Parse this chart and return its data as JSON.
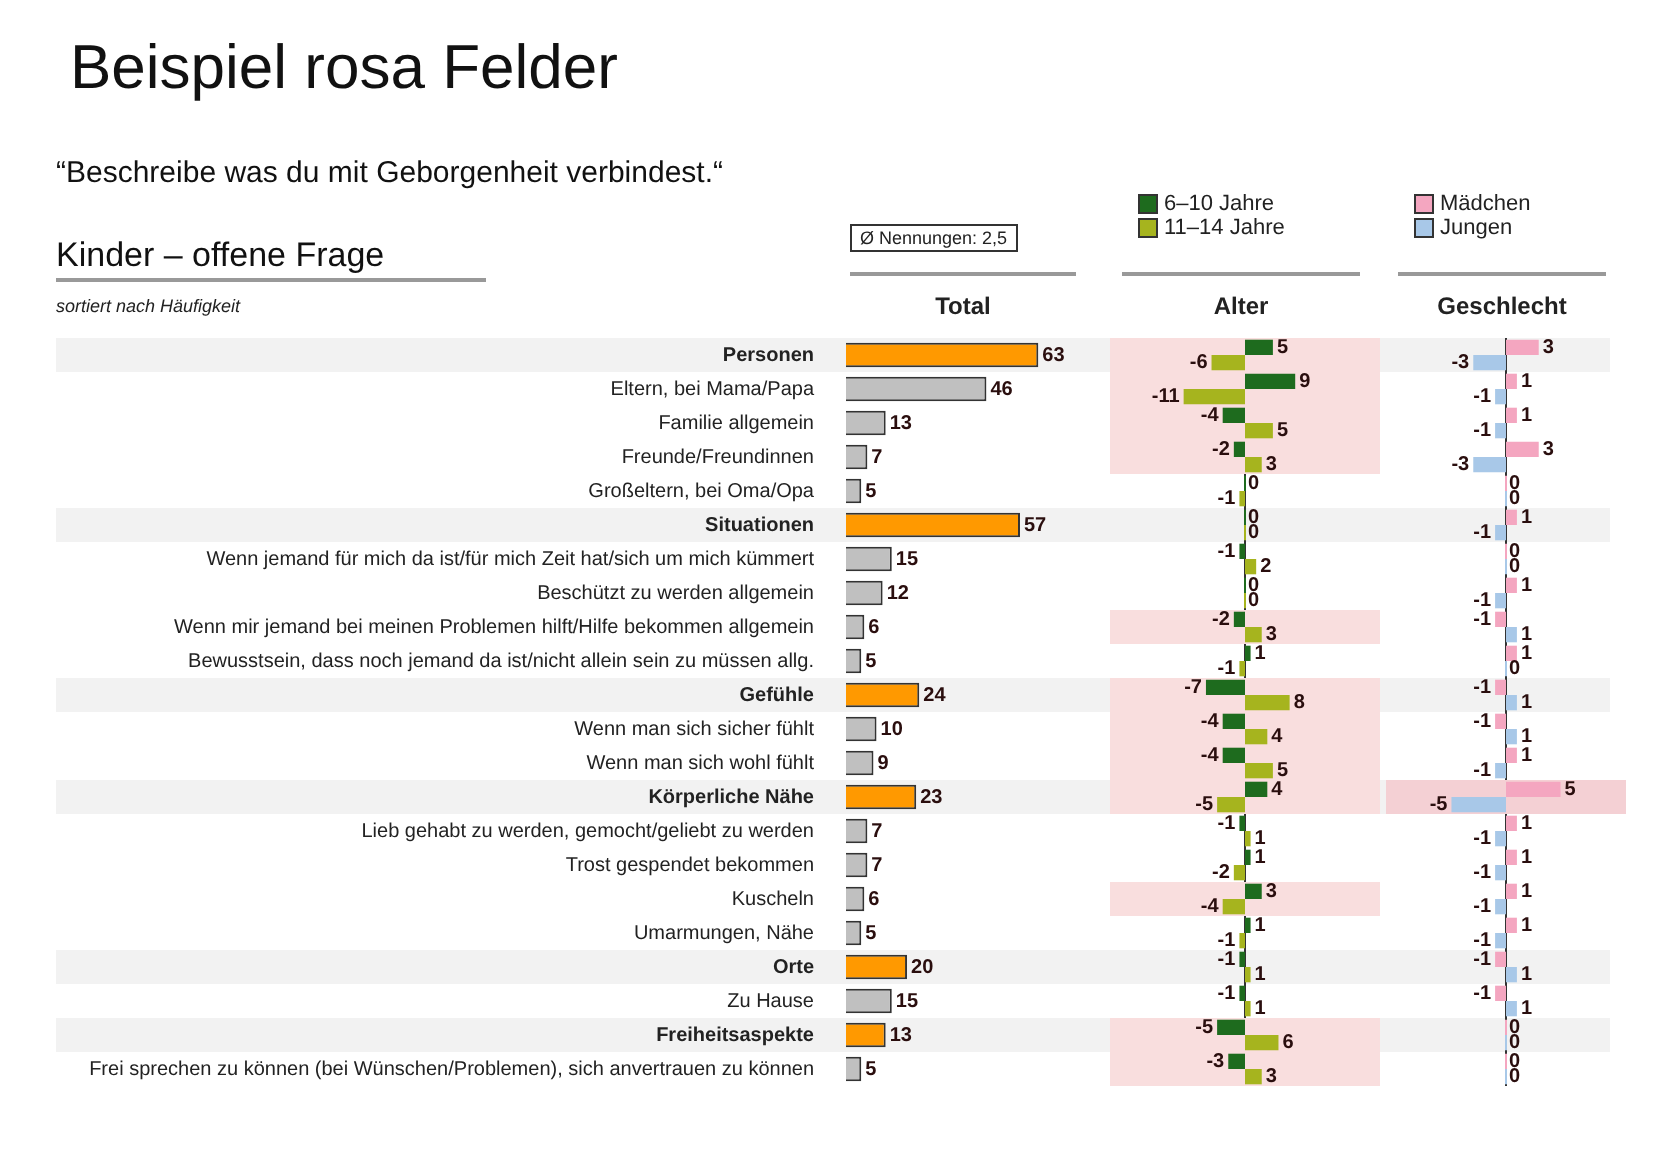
{
  "chart_data": [
    {
      "type": "bar",
      "orientation": "horizontal",
      "title": "Beispiel rosa Felder",
      "subtitle": "“Beschreibe was du mit Geborgenheit verbindest.“",
      "annotations": [
        "Kinder – offene Frage",
        "sortiert nach Häufigkeit",
        "Ø Nennungen: 2,5"
      ],
      "xlabel": "Total",
      "tick_labels": "y",
      "data_labels": true,
      "categories": [
        "Personen",
        "Eltern, bei Mama/Papa",
        "Familie allgemein",
        "Freunde/Freundinnen",
        "Großeltern, bei Oma/Opa",
        "Situationen",
        "Wenn jemand für mich da ist/für mich Zeit hat/sich um mich kümmert",
        "Beschützt zu werden allgemein",
        "Wenn mir jemand bei meinen Problemen hilft/Hilfe bekommen allgemein",
        "Bewusstsein, dass noch jemand da ist/nicht allein sein zu müssen allg.",
        "Gefühle",
        "Wenn man sich sicher fühlt",
        "Wenn man sich wohl fühlt",
        "Körperliche Nähe",
        "Lieb gehabt zu werden, gemocht/geliebt zu werden",
        "Trost gespendet bekommen",
        "Kuscheln",
        "Umarmungen, Nähe",
        "Orte",
        "Zu Hause",
        "Freiheitsaspekte",
        "Frei sprechen zu können (bei Wünschen/Problemen), sich anvertrauen zu können"
      ],
      "values": [
        63,
        46,
        13,
        7,
        5,
        57,
        15,
        12,
        6,
        5,
        24,
        10,
        9,
        23,
        7,
        7,
        6,
        5,
        20,
        15,
        13,
        5
      ],
      "colors": [
        "#ff9900",
        "#c0c0c0",
        "#c0c0c0",
        "#c0c0c0",
        "#c0c0c0",
        "#ff9900",
        "#c0c0c0",
        "#c0c0c0",
        "#c0c0c0",
        "#c0c0c0",
        "#ff9900",
        "#c0c0c0",
        "#c0c0c0",
        "#ff9900",
        "#c0c0c0",
        "#c0c0c0",
        "#c0c0c0",
        "#c0c0c0",
        "#ff9900",
        "#c0c0c0",
        "#ff9900",
        "#c0c0c0"
      ]
    },
    {
      "type": "bar",
      "orientation": "horizontal",
      "xlabel": "Alter",
      "tick_labels": false,
      "data_labels": true,
      "legend": "top",
      "categories": [
        "Personen",
        "Eltern, bei Mama/Papa",
        "Familie allgemein",
        "Freunde/Freundinnen",
        "Großeltern, bei Oma/Opa",
        "Situationen",
        "Wenn jemand für mich da ist/für mich Zeit hat/sich um mich kümmert",
        "Beschützt zu werden allgemein",
        "Wenn mir jemand bei meinen Problemen hilft/Hilfe bekommen allgemein",
        "Bewusstsein, dass noch jemand da ist/nicht allein sein zu müssen allg.",
        "Gefühle",
        "Wenn man sich sicher fühlt",
        "Wenn man sich wohl fühlt",
        "Körperliche Nähe",
        "Lieb gehabt zu werden, gemocht/geliebt zu werden",
        "Trost gespendet bekommen",
        "Kuscheln",
        "Umarmungen, Nähe",
        "Orte",
        "Zu Hause",
        "Freiheitsaspekte",
        "Frei sprechen zu können (bei Wünschen/Problemen), sich anvertrauen zu können"
      ],
      "series": [
        {
          "name": "6–10 Jahre",
          "color": "#1e6b1e",
          "values": [
            5,
            9,
            -4,
            -2,
            0,
            0,
            -1,
            0,
            -2,
            1,
            -7,
            -4,
            -4,
            4,
            -1,
            1,
            3,
            1,
            -1,
            -1,
            -5,
            -3
          ]
        },
        {
          "name": "11–14 Jahre",
          "color": "#a6b41e",
          "values": [
            -6,
            -11,
            5,
            3,
            -1,
            0,
            2,
            0,
            3,
            -1,
            8,
            4,
            5,
            -5,
            1,
            -2,
            -4,
            -1,
            1,
            1,
            6,
            3
          ]
        }
      ],
      "bands": [
        {
          "axis": "y",
          "from": "Personen",
          "to": "Freunde/Freundinnen",
          "color": "#f9dede"
        },
        {
          "axis": "y",
          "from": "Wenn mir jemand bei meinen Problemen hilft/Hilfe bekommen allgemein",
          "to": "Wenn mir jemand bei meinen Problemen hilft/Hilfe bekommen allgemein",
          "color": "#f9dede"
        },
        {
          "axis": "y",
          "from": "Gefühle",
          "to": "Körperliche Nähe",
          "color": "#f9dede"
        },
        {
          "axis": "y",
          "from": "Kuscheln",
          "to": "Kuscheln",
          "color": "#f9dede"
        },
        {
          "axis": "y",
          "from": "Freiheitsaspekte",
          "to": "Frei sprechen zu können (bei Wünschen/Problemen), sich anvertrauen zu können",
          "color": "#f9dede"
        }
      ]
    },
    {
      "type": "bar",
      "orientation": "horizontal",
      "xlabel": "Geschlecht",
      "tick_labels": false,
      "data_labels": true,
      "legend": "top",
      "categories": [
        "Personen",
        "Eltern, bei Mama/Papa",
        "Familie allgemein",
        "Freunde/Freundinnen",
        "Großeltern, bei Oma/Opa",
        "Situationen",
        "Wenn jemand für mich da ist/für mich Zeit hat/sich um mich kümmert",
        "Beschützt zu werden allgemein",
        "Wenn mir jemand bei meinen Problemen hilft/Hilfe bekommen allgemein",
        "Bewusstsein, dass noch jemand da ist/nicht allein sein zu müssen allg.",
        "Gefühle",
        "Wenn man sich sicher fühlt",
        "Wenn man sich wohl fühlt",
        "Körperliche Nähe",
        "Lieb gehabt zu werden, gemocht/geliebt zu werden",
        "Trost gespendet bekommen",
        "Kuscheln",
        "Umarmungen, Nähe",
        "Orte",
        "Zu Hause",
        "Freiheitsaspekte",
        "Frei sprechen zu können (bei Wünschen/Problemen), sich anvertrauen zu können"
      ],
      "series": [
        {
          "name": "Mädchen",
          "color": "#f4a6c0",
          "values": [
            3,
            1,
            1,
            3,
            0,
            1,
            0,
            1,
            -1,
            1,
            -1,
            -1,
            1,
            5,
            1,
            1,
            1,
            1,
            -1,
            -1,
            0,
            0
          ]
        },
        {
          "name": "Jungen",
          "color": "#a8c8e8",
          "values": [
            -3,
            -1,
            -1,
            -3,
            0,
            -1,
            0,
            -1,
            1,
            0,
            1,
            1,
            -1,
            -5,
            -1,
            -1,
            -1,
            -1,
            1,
            1,
            0,
            0
          ]
        }
      ],
      "bands": [
        {
          "axis": "y",
          "from": "Körperliche Nähe",
          "to": "Körperliche Nähe",
          "color": "#f4d0d4"
        }
      ]
    }
  ]
}
